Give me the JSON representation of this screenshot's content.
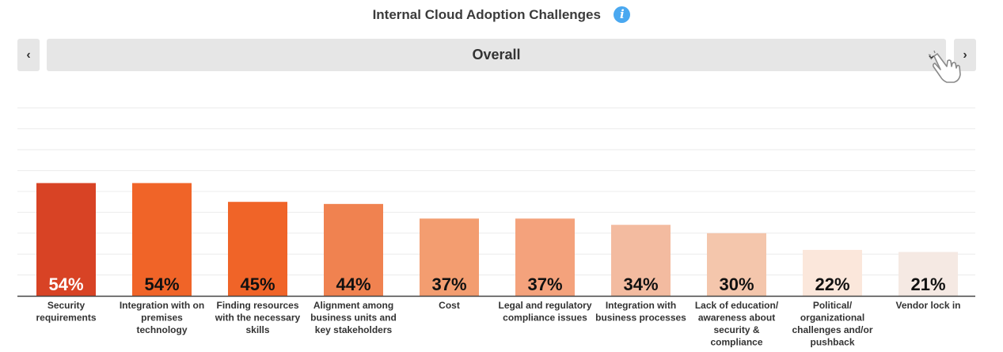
{
  "header": {
    "title": "Internal Cloud Adoption Challenges",
    "info_icon": "info-icon"
  },
  "selector": {
    "prev_icon": "chevron-left-icon",
    "next_icon": "chevron-right-icon",
    "value": "Overall",
    "caret_icon": "chevron-down-icon",
    "cursor_icon": "hand-pointer-icon"
  },
  "chart_data": {
    "type": "bar",
    "title": "Internal Cloud Adoption Challenges",
    "categories": [
      [
        "Security",
        "requirements"
      ],
      [
        "Integration with on",
        "premises",
        "technology"
      ],
      [
        "Finding resources",
        "with the necessary",
        "skills"
      ],
      [
        "Alignment among",
        "business units and",
        "key stakeholders"
      ],
      [
        "Cost"
      ],
      [
        "Legal and regulatory",
        "compliance issues"
      ],
      [
        "Integration with",
        "business processes"
      ],
      [
        "Lack of education/",
        "awareness about",
        "security &",
        "compliance"
      ],
      [
        "Political/",
        "organizational",
        "challenges and/or",
        "pushback"
      ],
      [
        "Vendor lock in"
      ]
    ],
    "values": [
      54,
      54,
      45,
      44,
      37,
      37,
      34,
      30,
      22,
      21
    ],
    "labels": [
      "54%",
      "54%",
      "45%",
      "44%",
      "37%",
      "37%",
      "34%",
      "30%",
      "22%",
      "21%"
    ],
    "colors": [
      "#d84325",
      "#f06428",
      "#f06428",
      "#f08250",
      "#f39d70",
      "#f4a27c",
      "#f3bba0",
      "#f4c6ac",
      "#fbe7db",
      "#f5e9e3"
    ],
    "label_colors": [
      "#ffffff",
      "#111111",
      "#111111",
      "#111111",
      "#111111",
      "#111111",
      "#111111",
      "#111111",
      "#111111",
      "#111111"
    ],
    "ylim": [
      0,
      100
    ],
    "grid": true,
    "xlabel": "",
    "ylabel": ""
  }
}
